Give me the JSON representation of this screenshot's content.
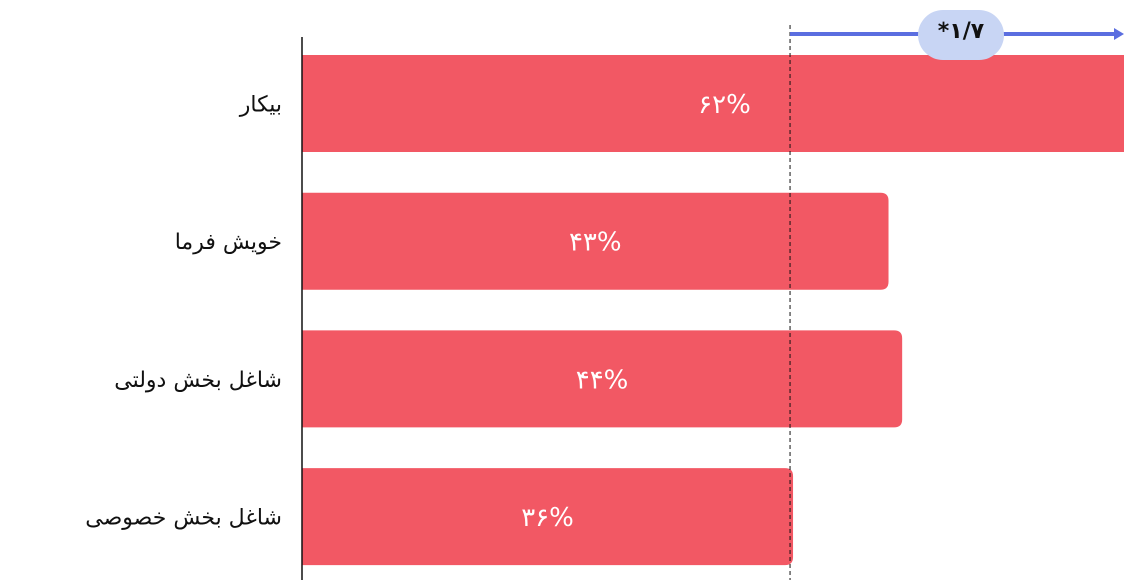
{
  "chart_data": {
    "type": "bar",
    "orientation": "horizontal",
    "categories": [
      "بیکار",
      "خویش فرما",
      "شاغل بخش دولتی",
      "شاغل بخش خصوصی"
    ],
    "values": [
      62,
      43,
      44,
      36
    ],
    "value_labels": [
      "۶۲%",
      "۴۳%",
      "۴۴%",
      "۳۶%"
    ],
    "color": "#f25864",
    "annotation": "*۱/۷",
    "annotation_color": "#5b6ee0"
  }
}
